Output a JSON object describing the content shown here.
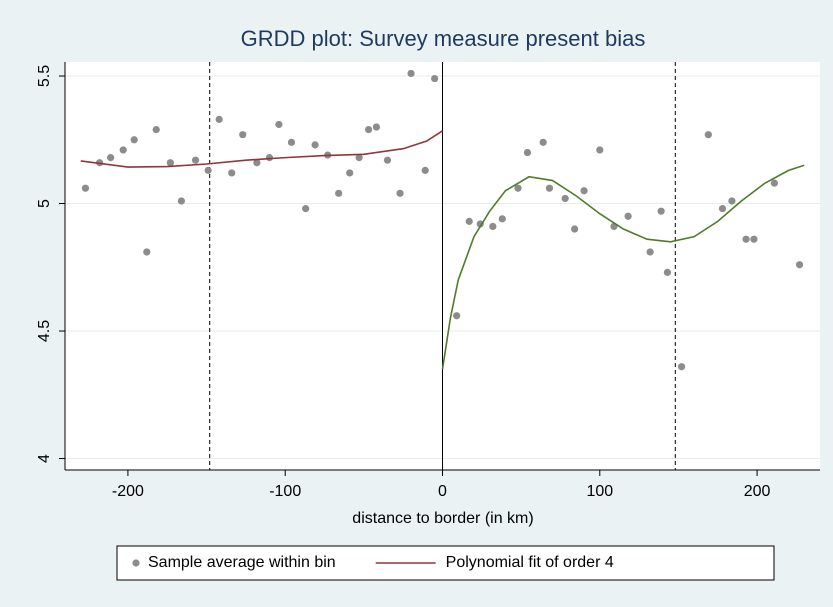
{
  "chart_data": {
    "type": "scatter",
    "title": "GRDD plot: Survey measure present bias",
    "x_label": "distance to border (in km)",
    "xlim": [
      -240,
      240
    ],
    "ylim": [
      3.955,
      5.555
    ],
    "xticks": [
      -200,
      -100,
      0,
      100,
      200
    ],
    "yticks": [
      4,
      4.5,
      5,
      5.5
    ],
    "grid": true,
    "vlines": [
      {
        "value": 0,
        "style": "solid"
      },
      {
        "value": -148,
        "style": "dashed"
      },
      {
        "value": 148,
        "style": "dashed"
      }
    ],
    "series": [
      {
        "name": "Sample average within bin",
        "mode": "markers",
        "color": "#8c8c8c",
        "x": [
          -227,
          -218,
          -211,
          -203,
          -196,
          -188,
          -182,
          -173,
          -166,
          -157,
          -149,
          -142,
          -134,
          -127,
          -118,
          -110,
          -104,
          -96,
          -87,
          -81,
          -73,
          -66,
          -59,
          -53,
          -47,
          -42,
          -35,
          -27,
          -20,
          -11,
          -5,
          9,
          17,
          24,
          32,
          38,
          48,
          54,
          64,
          68,
          78,
          84,
          90,
          100,
          109,
          118,
          132,
          139,
          143,
          152,
          169,
          178,
          184,
          193,
          198,
          211,
          227
        ],
        "values": [
          5.06,
          5.16,
          5.18,
          5.21,
          5.25,
          4.81,
          5.29,
          5.16,
          5.01,
          5.17,
          5.13,
          5.33,
          5.12,
          5.27,
          5.16,
          5.18,
          5.31,
          5.24,
          4.98,
          5.23,
          5.19,
          5.04,
          5.12,
          5.18,
          5.29,
          5.3,
          5.17,
          5.04,
          5.51,
          5.13,
          5.49,
          4.56,
          4.93,
          4.92,
          4.91,
          4.94,
          5.06,
          5.2,
          5.24,
          5.06,
          5.02,
          4.9,
          5.05,
          5.21,
          4.91,
          4.95,
          4.81,
          4.97,
          4.73,
          4.36,
          5.27,
          4.98,
          5.01,
          4.86,
          4.86,
          5.08,
          4.76
        ]
      },
      {
        "name": "Polynomial fit of order 4",
        "mode": "line",
        "color": "#90353b",
        "x": [
          -230,
          -200,
          -175,
          -150,
          -125,
          -100,
          -75,
          -50,
          -25,
          -10,
          0
        ],
        "values": [
          5.167,
          5.143,
          5.145,
          5.155,
          5.17,
          5.18,
          5.188,
          5.193,
          5.215,
          5.245,
          5.285
        ]
      },
      {
        "mode": "line",
        "color": "#4f7c2b",
        "x": [
          0,
          5,
          10,
          20,
          30,
          40,
          55,
          70,
          85,
          100,
          115,
          130,
          145,
          160,
          175,
          190,
          205,
          220,
          230
        ],
        "values": [
          4.35,
          4.55,
          4.7,
          4.87,
          4.97,
          5.05,
          5.105,
          5.09,
          5.03,
          4.96,
          4.9,
          4.86,
          4.85,
          4.87,
          4.93,
          5.01,
          5.08,
          5.13,
          5.15
        ]
      }
    ]
  }
}
